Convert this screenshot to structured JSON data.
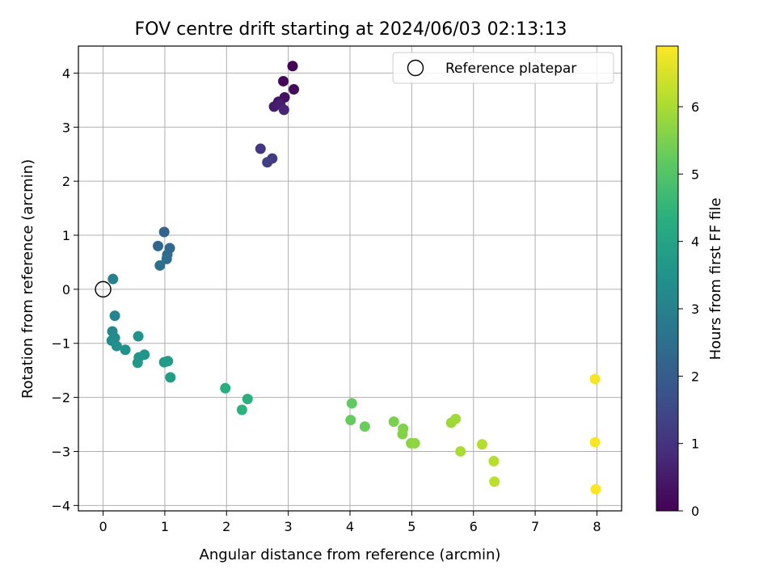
{
  "chart_data": {
    "type": "scatter",
    "title": "FOV centre drift starting at 2024/06/03 02:13:13",
    "xlabel": "Angular distance from reference (arcmin)",
    "ylabel": "Rotation from reference (arcmin)",
    "xlim": [
      -0.4,
      8.4
    ],
    "ylim": [
      -4.1,
      4.5
    ],
    "xticks": [
      0,
      1,
      2,
      3,
      4,
      5,
      6,
      7,
      8
    ],
    "yticks": [
      -4,
      -3,
      -2,
      -1,
      0,
      1,
      2,
      3,
      4
    ],
    "grid": true,
    "legend": {
      "placement": "top-right",
      "entries": [
        "Reference platepar"
      ]
    },
    "reference_point": {
      "x": 0,
      "y": 0,
      "label": "Reference platepar"
    },
    "colorbar": {
      "label": "Hours from first FF file",
      "range": [
        0,
        6.9
      ],
      "ticks": [
        0,
        1,
        2,
        3,
        4,
        5,
        6
      ],
      "colormap": "viridis"
    },
    "points": [
      {
        "x": 3.07,
        "y": 4.13,
        "t": 0.0
      },
      {
        "x": 2.92,
        "y": 3.85,
        "t": 0.1
      },
      {
        "x": 3.09,
        "y": 3.7,
        "t": 0.2
      },
      {
        "x": 2.94,
        "y": 3.55,
        "t": 0.3
      },
      {
        "x": 2.84,
        "y": 3.47,
        "t": 0.4
      },
      {
        "x": 2.77,
        "y": 3.38,
        "t": 0.5
      },
      {
        "x": 2.87,
        "y": 3.42,
        "t": 0.6
      },
      {
        "x": 2.93,
        "y": 3.32,
        "t": 0.7
      },
      {
        "x": 2.55,
        "y": 2.6,
        "t": 1.1
      },
      {
        "x": 2.74,
        "y": 2.42,
        "t": 1.2
      },
      {
        "x": 2.66,
        "y": 2.35,
        "t": 1.3
      },
      {
        "x": 0.99,
        "y": 1.06,
        "t": 2.2
      },
      {
        "x": 0.89,
        "y": 0.8,
        "t": 2.3
      },
      {
        "x": 1.08,
        "y": 0.76,
        "t": 2.35
      },
      {
        "x": 1.04,
        "y": 0.64,
        "t": 2.4
      },
      {
        "x": 1.03,
        "y": 0.56,
        "t": 2.45
      },
      {
        "x": 0.92,
        "y": 0.44,
        "t": 2.5
      },
      {
        "x": 0.16,
        "y": 0.19,
        "t": 3.0
      },
      {
        "x": 0.19,
        "y": -0.49,
        "t": 3.1
      },
      {
        "x": 0.15,
        "y": -0.78,
        "t": 3.2
      },
      {
        "x": 0.19,
        "y": -0.9,
        "t": 3.3
      },
      {
        "x": 0.14,
        "y": -0.95,
        "t": 3.35
      },
      {
        "x": 0.22,
        "y": -1.05,
        "t": 3.4
      },
      {
        "x": 0.36,
        "y": -1.12,
        "t": 3.45
      },
      {
        "x": 0.57,
        "y": -0.87,
        "t": 3.5
      },
      {
        "x": 0.58,
        "y": -1.26,
        "t": 3.55
      },
      {
        "x": 0.67,
        "y": -1.21,
        "t": 3.6
      },
      {
        "x": 0.56,
        "y": -1.36,
        "t": 3.65
      },
      {
        "x": 0.99,
        "y": -1.35,
        "t": 3.7
      },
      {
        "x": 1.05,
        "y": -1.33,
        "t": 3.75
      },
      {
        "x": 1.09,
        "y": -1.63,
        "t": 3.8
      },
      {
        "x": 1.98,
        "y": -1.83,
        "t": 4.3
      },
      {
        "x": 2.34,
        "y": -2.03,
        "t": 4.35
      },
      {
        "x": 2.25,
        "y": -2.23,
        "t": 4.4
      },
      {
        "x": 4.03,
        "y": -2.11,
        "t": 5.2
      },
      {
        "x": 4.01,
        "y": -2.42,
        "t": 5.25
      },
      {
        "x": 4.24,
        "y": -2.54,
        "t": 5.3
      },
      {
        "x": 4.71,
        "y": -2.45,
        "t": 5.5
      },
      {
        "x": 4.86,
        "y": -2.58,
        "t": 5.55
      },
      {
        "x": 4.85,
        "y": -2.68,
        "t": 5.6
      },
      {
        "x": 4.99,
        "y": -2.85,
        "t": 5.65
      },
      {
        "x": 5.05,
        "y": -2.85,
        "t": 5.7
      },
      {
        "x": 5.64,
        "y": -2.47,
        "t": 5.85
      },
      {
        "x": 5.71,
        "y": -2.4,
        "t": 5.9
      },
      {
        "x": 5.79,
        "y": -3.0,
        "t": 6.0
      },
      {
        "x": 6.14,
        "y": -2.87,
        "t": 6.1
      },
      {
        "x": 6.33,
        "y": -3.18,
        "t": 6.15
      },
      {
        "x": 6.34,
        "y": -3.56,
        "t": 6.2
      },
      {
        "x": 7.97,
        "y": -1.66,
        "t": 6.8
      },
      {
        "x": 7.97,
        "y": -2.83,
        "t": 6.85
      },
      {
        "x": 7.98,
        "y": -3.7,
        "t": 6.9
      }
    ]
  }
}
